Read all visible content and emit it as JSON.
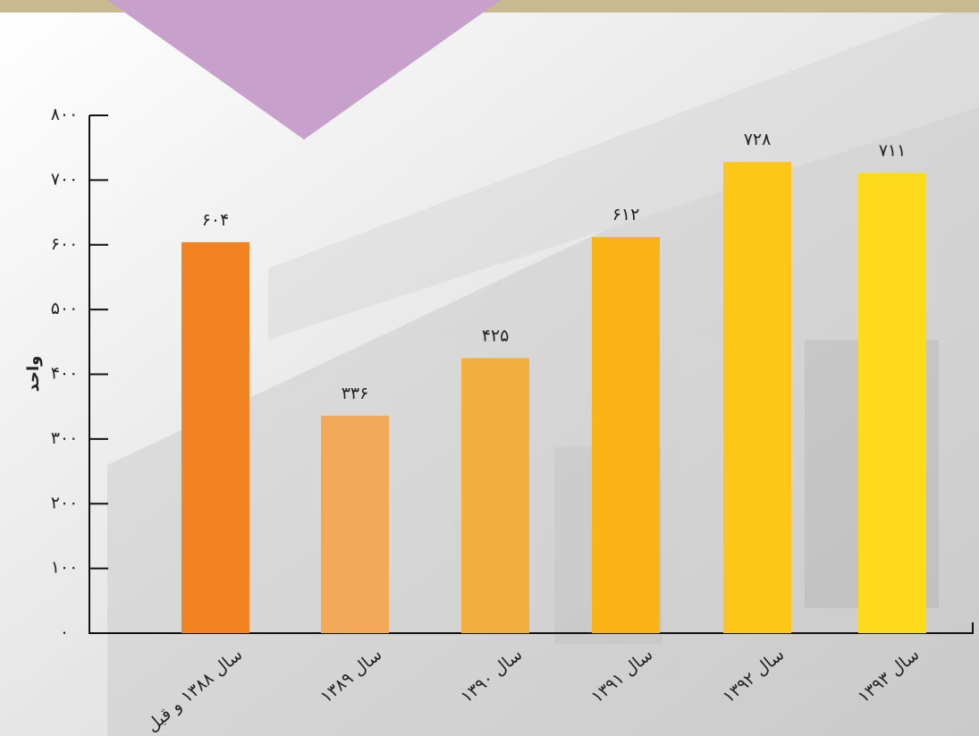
{
  "chart_data": {
    "type": "bar",
    "y_label": "واحد",
    "categories": [
      "سال ۱۳۸۸ و قبل",
      "سال ۱۳۸۹",
      "سال ۱۳۹۰",
      "سال ۱۳۹۱",
      "سال ۱۳۹۲",
      "سال ۱۳۹۳"
    ],
    "values": [
      604,
      336,
      425,
      612,
      728,
      711
    ],
    "value_labels": [
      "۶۰۴",
      "۳۳۶",
      "۴۲۵",
      "۶۱۲",
      "۷۲۸",
      "۷۱۱"
    ],
    "colors": [
      "#f28323",
      "#f4a958",
      "#f2ae3e",
      "#fbb318",
      "#fcc716",
      "#fddb1a"
    ],
    "ylim": [
      0,
      800
    ],
    "yticks": [
      {
        "value": 0,
        "label": "۰"
      },
      {
        "value": 100,
        "label": "۱۰۰"
      },
      {
        "value": 200,
        "label": "۲۰۰"
      },
      {
        "value": 300,
        "label": "۳۰۰"
      },
      {
        "value": 400,
        "label": "۴۰۰"
      },
      {
        "value": 500,
        "label": "۵۰۰"
      },
      {
        "value": 600,
        "label": "۶۰۰"
      },
      {
        "value": 700,
        "label": "۷۰۰"
      },
      {
        "value": 800,
        "label": "۸۰۰"
      }
    ],
    "grid": false
  }
}
